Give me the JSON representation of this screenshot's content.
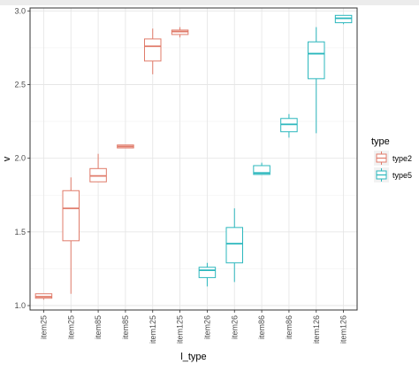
{
  "chart_data": {
    "type": "box",
    "xlabel": "l_type",
    "ylabel": "v",
    "ylim": [
      0.97,
      3.02
    ],
    "yticks": [
      "1.0",
      "1.5",
      "2.0",
      "2.5",
      "3.0"
    ],
    "grid": true,
    "legend": {
      "title": "type",
      "placement": "right",
      "entries": [
        {
          "name": "type2",
          "color": "#e07b6a"
        },
        {
          "name": "type5",
          "color": "#2bb7bd"
        }
      ]
    },
    "categories": [
      "item25",
      "item25",
      "item85",
      "item85",
      "item125",
      "item125",
      "item26",
      "item26",
      "item86",
      "item86",
      "item126",
      "item126"
    ],
    "boxes": [
      {
        "category_index": 0,
        "series": "type2",
        "min": 1.04,
        "q1": 1.05,
        "median": 1.06,
        "q3": 1.08,
        "max": 1.08
      },
      {
        "category_index": 1,
        "series": "type2",
        "min": 1.08,
        "q1": 1.44,
        "median": 1.66,
        "q3": 1.78,
        "max": 1.87
      },
      {
        "category_index": 2,
        "series": "type2",
        "min": 1.84,
        "q1": 1.84,
        "median": 1.88,
        "q3": 1.93,
        "max": 2.03
      },
      {
        "category_index": 3,
        "series": "type2",
        "min": 2.07,
        "q1": 2.07,
        "median": 2.08,
        "q3": 2.09,
        "max": 2.09
      },
      {
        "category_index": 4,
        "series": "type2",
        "min": 2.57,
        "q1": 2.66,
        "median": 2.76,
        "q3": 2.81,
        "max": 2.88
      },
      {
        "category_index": 5,
        "series": "type2",
        "min": 2.82,
        "q1": 2.84,
        "median": 2.86,
        "q3": 2.87,
        "max": 2.89
      },
      {
        "category_index": 6,
        "series": "type5",
        "min": 1.13,
        "q1": 1.19,
        "median": 1.24,
        "q3": 1.26,
        "max": 1.29
      },
      {
        "category_index": 7,
        "series": "type5",
        "min": 1.16,
        "q1": 1.29,
        "median": 1.42,
        "q3": 1.53,
        "max": 1.66
      },
      {
        "category_index": 8,
        "series": "type5",
        "min": 1.89,
        "q1": 1.89,
        "median": 1.9,
        "q3": 1.95,
        "max": 1.97
      },
      {
        "category_index": 9,
        "series": "type5",
        "min": 2.14,
        "q1": 2.18,
        "median": 2.23,
        "q3": 2.27,
        "max": 2.3
      },
      {
        "category_index": 10,
        "series": "type5",
        "min": 2.17,
        "q1": 2.54,
        "median": 2.71,
        "q3": 2.79,
        "max": 2.89
      },
      {
        "category_index": 11,
        "series": "type5",
        "min": 2.91,
        "q1": 2.92,
        "median": 2.95,
        "q3": 2.97,
        "max": 2.97
      }
    ]
  }
}
